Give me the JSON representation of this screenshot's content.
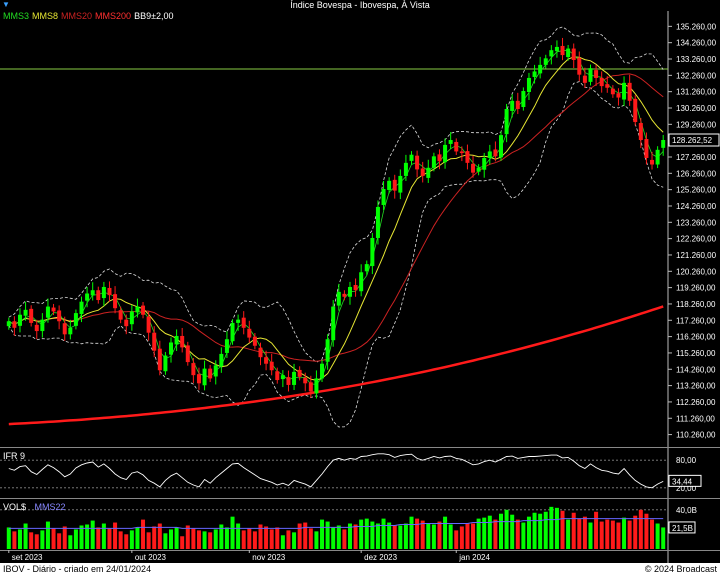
{
  "window": {
    "title": "Índice Bovespa - Ibovespa, À Vista"
  },
  "legend": [
    {
      "label": "MMS3",
      "color": "#22dd22"
    },
    {
      "label": "MMS8",
      "color": "#e6e633"
    },
    {
      "label": "MMS20",
      "color": "#cc2222"
    },
    {
      "label": "MMS200",
      "color": "#ff3030"
    },
    {
      "label": "BB9±2,00",
      "color": "#ffffff"
    }
  ],
  "ifr_panel": {
    "label": "IFR 9",
    "levels": [
      "80,00",
      "20,00"
    ],
    "current": "34,44"
  },
  "vol_panel": {
    "label": "VOL$",
    "ma_label": "MMS22",
    "level": "40,0B",
    "current": "21,5B"
  },
  "x_labels": [
    "set 2023",
    "out 2023",
    "nov 2023",
    "dez 2023",
    "jan 2024"
  ],
  "price_label": "128.262,52",
  "footer": {
    "left": "IBOV - Diário - criado em 24/01/2024",
    "right": "© 2024 Broadcast"
  },
  "colors": {
    "up": "#00ff00",
    "down": "#ff1a1a",
    "mms200": "#ff1a1a",
    "hline": "#88cc44"
  },
  "chart_data": {
    "type": "candlestick",
    "title": "Índice Bovespa - Ibovespa, À Vista",
    "y_ticks": [
      110260,
      111260,
      112260,
      113260,
      114260,
      115260,
      116260,
      117260,
      118260,
      119260,
      120260,
      121260,
      122260,
      123260,
      124260,
      125260,
      126260,
      127260,
      128260,
      129260,
      130260,
      131260,
      132260,
      133260,
      134260,
      135260
    ],
    "ylim": [
      109500,
      136200
    ],
    "horizontal_line": 132650,
    "x_label_positions": [
      0,
      22,
      43,
      63,
      80
    ],
    "closes": [
      117200,
      116800,
      117600,
      117900,
      117100,
      116600,
      117300,
      118100,
      117800,
      117200,
      116400,
      116800,
      117700,
      118400,
      118900,
      119100,
      118500,
      119300,
      118800,
      118000,
      117300,
      116900,
      117800,
      118100,
      117600,
      116500,
      115400,
      114200,
      115100,
      115900,
      116300,
      115600,
      114700,
      113900,
      113400,
      114300,
      113700,
      114500,
      115200,
      116100,
      117100,
      117300,
      116800,
      116200,
      115700,
      115000,
      114600,
      114200,
      113600,
      113900,
      113300,
      114100,
      113800,
      113400,
      112900,
      113700,
      114600,
      116100,
      118100,
      119000,
      118700,
      119300,
      119100,
      120200,
      120700,
      122300,
      124200,
      125300,
      125800,
      125200,
      126100,
      126900,
      127400,
      126500,
      126100,
      126600,
      127300,
      127000,
      128000,
      128300,
      127600,
      127500,
      126900,
      126300,
      126600,
      127200,
      127600,
      127300,
      128600,
      130200,
      130700,
      130200,
      131300,
      132100,
      132500,
      132900,
      133300,
      133800,
      134000,
      133500,
      133900,
      133200,
      132300,
      131800,
      132700,
      132100,
      131600,
      131500,
      131100,
      130900,
      131800,
      130700,
      129400,
      128300,
      127200,
      126800,
      127700,
      128300
    ],
    "ifr_values": [
      62,
      58,
      66,
      68,
      55,
      49,
      60,
      70,
      64,
      55,
      44,
      50,
      63,
      70,
      74,
      76,
      65,
      72,
      62,
      50,
      42,
      38,
      52,
      55,
      48,
      36,
      30,
      22,
      36,
      46,
      52,
      42,
      32,
      26,
      22,
      38,
      30,
      42,
      52,
      62,
      72,
      73,
      64,
      56,
      48,
      40,
      36,
      32,
      26,
      30,
      25,
      36,
      32,
      28,
      22,
      36,
      50,
      66,
      80,
      84,
      80,
      84,
      82,
      88,
      89,
      92,
      94,
      94,
      92,
      86,
      90,
      92,
      93,
      84,
      80,
      84,
      88,
      85,
      88,
      89,
      84,
      82,
      76,
      70,
      72,
      77,
      80,
      76,
      82,
      88,
      89,
      84,
      86,
      88,
      88,
      89,
      90,
      91,
      91,
      85,
      86,
      78,
      68,
      62,
      72,
      64,
      58,
      56,
      52,
      50,
      62,
      48,
      36,
      28,
      22,
      20,
      28,
      34
    ],
    "volume_values": [
      22,
      18,
      20,
      26,
      17,
      15,
      19,
      28,
      21,
      16,
      23,
      14,
      20,
      24,
      25,
      29,
      22,
      26,
      21,
      27,
      18,
      15,
      19,
      22,
      30,
      17,
      23,
      26,
      16,
      20,
      22,
      13,
      24,
      21,
      19,
      18,
      17,
      20,
      25,
      22,
      33,
      26,
      19,
      21,
      18,
      25,
      23,
      20,
      22,
      14,
      19,
      17,
      26,
      27,
      21,
      18,
      30,
      28,
      22,
      24,
      20,
      26,
      25,
      30,
      31,
      28,
      26,
      31,
      27,
      24,
      24,
      26,
      33,
      31,
      29,
      26,
      25,
      28,
      33,
      25,
      19,
      23,
      26,
      26,
      31,
      32,
      34,
      30,
      36,
      40,
      35,
      30,
      27,
      33,
      37,
      36,
      38,
      43,
      42,
      39,
      30,
      37,
      31,
      33,
      27,
      38,
      28,
      30,
      29,
      27,
      32,
      29,
      34,
      40,
      36,
      30,
      26,
      22
    ],
    "volume_ma": [
      21,
      21,
      21,
      21,
      21,
      21,
      21,
      21,
      21,
      21,
      21,
      21,
      21,
      21,
      21,
      21,
      21,
      21,
      21,
      21,
      21,
      21,
      21,
      22,
      22,
      22,
      22,
      22,
      22,
      22,
      22,
      21,
      21,
      21,
      21,
      21,
      21,
      21,
      21,
      21,
      21,
      21,
      21,
      21,
      21,
      21,
      21,
      21,
      21,
      21,
      21,
      21,
      21,
      22,
      22,
      22,
      22,
      22,
      22,
      22,
      22,
      22,
      23,
      23,
      23,
      23,
      24,
      24,
      24,
      24,
      25,
      25,
      25,
      25,
      26,
      26,
      26,
      26,
      26,
      26,
      26,
      26,
      26,
      27,
      27,
      27,
      27,
      28,
      28,
      28,
      28,
      28,
      29,
      29,
      29,
      29,
      30,
      30,
      30,
      31,
      31,
      31,
      31,
      31,
      31,
      31,
      31,
      31,
      31,
      31,
      31,
      31,
      31,
      31,
      31,
      31,
      31,
      31
    ]
  }
}
